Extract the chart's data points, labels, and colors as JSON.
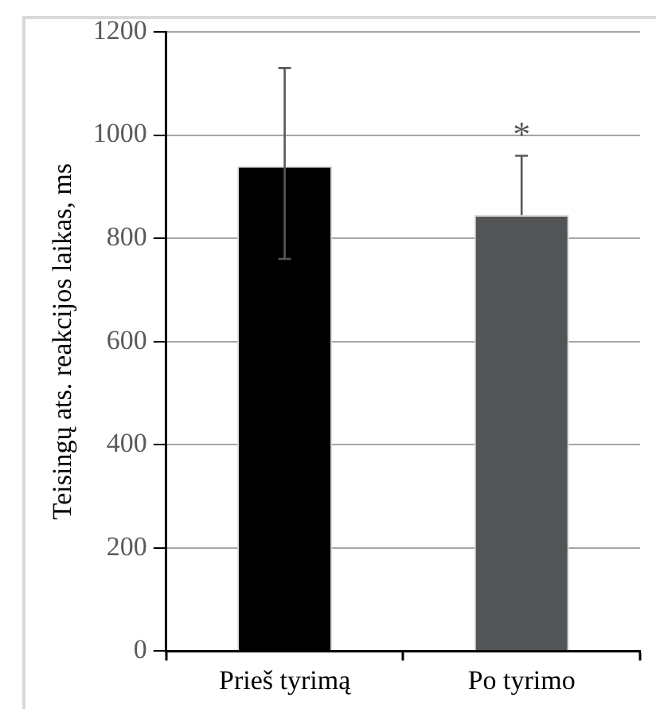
{
  "chart_data": {
    "type": "bar",
    "ylabel": "Teisingų ats. reakcijos laikas, ms",
    "categories": [
      "Prieš tyrimą",
      "Po tyrimo"
    ],
    "values": [
      940,
      845
    ],
    "colors": [
      "#000000",
      "#525456"
    ],
    "errors": [
      [
        760,
        1130
      ],
      [
        845,
        960
      ]
    ],
    "ylim": [
      0,
      1200
    ],
    "yticks": [
      0,
      200,
      400,
      600,
      800,
      1000,
      1200
    ],
    "grid": "y",
    "legend": false,
    "annotations": [
      "*"
    ]
  }
}
